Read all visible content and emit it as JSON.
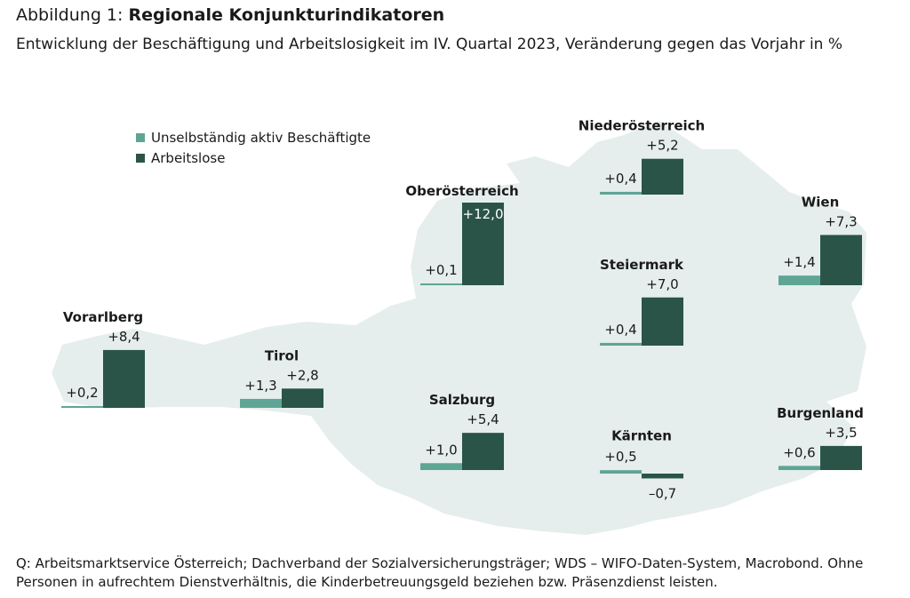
{
  "header": {
    "title_prefix": "Abbildung 1: ",
    "title_bold": "Regionale Konjunkturindikatoren",
    "subtitle": "Entwicklung der Beschäftigung und Arbeitslosigkeit im IV. Quartal 2023, Veränderung gegen das Vorjahr in %"
  },
  "footer": {
    "source": "Q: Arbeitsmarktservice Österreich; Dachverband der Sozialversicherungsträger; WDS – WIFO-Daten-System, Macrobond. Ohne Personen in aufrechtem Dienstverhältnis, die Kinderbetreuungsgeld beziehen bzw. Präsenzdienst leisten."
  },
  "colors": {
    "employment": "#5fa596",
    "unemployment": "#2a5448",
    "map": "#e5eeec"
  },
  "chart_data": {
    "type": "bar",
    "legend_position": "top-left",
    "series": [
      {
        "name": "Unselbständig aktiv Beschäftigte",
        "key": "employment"
      },
      {
        "name": "Arbeitslose",
        "key": "unemployment"
      }
    ],
    "regions": [
      {
        "name": "Vorarlberg",
        "employment": 0.2,
        "unemployment": 8.4,
        "employment_label": "+0,2",
        "unemployment_label": "+8,4"
      },
      {
        "name": "Tirol",
        "employment": 1.3,
        "unemployment": 2.8,
        "employment_label": "+1,3",
        "unemployment_label": "+2,8"
      },
      {
        "name": "Oberösterreich",
        "employment": 0.1,
        "unemployment": 12.0,
        "employment_label": "+0,1",
        "unemployment_label": "+12,0"
      },
      {
        "name": "Salzburg",
        "employment": 1.0,
        "unemployment": 5.4,
        "employment_label": "+1,0",
        "unemployment_label": "+5,4"
      },
      {
        "name": "Niederösterreich",
        "employment": 0.4,
        "unemployment": 5.2,
        "employment_label": "+0,4",
        "unemployment_label": "+5,2"
      },
      {
        "name": "Steiermark",
        "employment": 0.4,
        "unemployment": 7.0,
        "employment_label": "+0,4",
        "unemployment_label": "+7,0"
      },
      {
        "name": "Kärnten",
        "employment": 0.5,
        "unemployment": -0.7,
        "employment_label": "+0,5",
        "unemployment_label": "–0,7"
      },
      {
        "name": "Wien",
        "employment": 1.4,
        "unemployment": 7.3,
        "employment_label": "+1,4",
        "unemployment_label": "+7,3"
      },
      {
        "name": "Burgenland",
        "employment": 0.6,
        "unemployment": 3.5,
        "employment_label": "+0,6",
        "unemployment_label": "+3,5"
      }
    ]
  }
}
